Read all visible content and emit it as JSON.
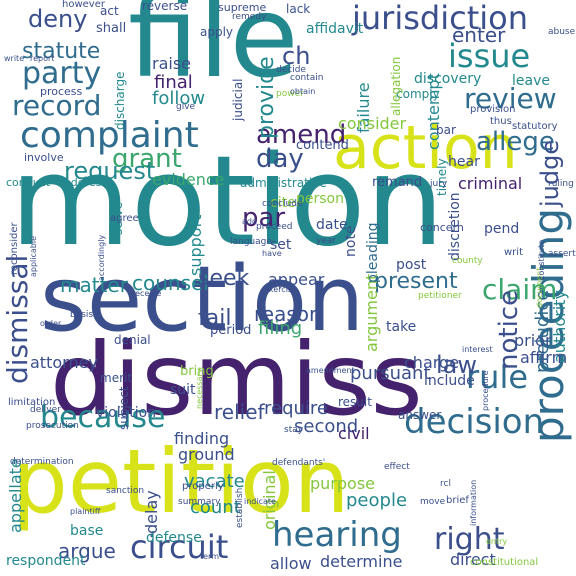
{
  "palette": {
    "purple": "#45226d",
    "indigo": "#3b4f8c",
    "blue": "#2f6c8e",
    "teal": "#23898e",
    "green": "#3aa66d",
    "lime": "#84c73d",
    "yellow": "#d8e219"
  },
  "words": [
    {
      "text": "motion",
      "color": "teal"
    },
    {
      "text": "file",
      "color": "teal"
    },
    {
      "text": "section",
      "color": "indigo"
    },
    {
      "text": "dismiss",
      "color": "purple"
    },
    {
      "text": "petition",
      "color": "yellow"
    },
    {
      "text": "action",
      "color": "yellow"
    },
    {
      "text": "complaint",
      "color": "blue"
    },
    {
      "text": "jurisdiction",
      "color": "indigo"
    },
    {
      "text": "proceeding",
      "color": "blue"
    },
    {
      "text": "hearing",
      "color": "blue"
    },
    {
      "text": "dismissal",
      "color": "indigo"
    },
    {
      "text": "decision",
      "color": "blue"
    },
    {
      "text": "because",
      "color": "teal"
    },
    {
      "text": "circuit",
      "color": "indigo"
    },
    {
      "text": "issue",
      "color": "teal"
    },
    {
      "text": "party",
      "color": "blue"
    },
    {
      "text": "review",
      "color": "blue"
    },
    {
      "text": "record",
      "color": "blue"
    },
    {
      "text": "deny",
      "color": "indigo"
    },
    {
      "text": "claim",
      "color": "green"
    },
    {
      "text": "rule",
      "color": "blue"
    },
    {
      "text": "amend",
      "color": "purple"
    },
    {
      "text": "grant",
      "color": "green"
    },
    {
      "text": "day",
      "color": "indigo"
    },
    {
      "text": "notice",
      "color": "indigo"
    },
    {
      "text": "right",
      "color": "indigo"
    },
    {
      "text": "allege",
      "color": "blue"
    },
    {
      "text": "statute",
      "color": "blue"
    },
    {
      "text": "par",
      "color": "purple"
    },
    {
      "text": "request",
      "color": "teal"
    },
    {
      "text": "judge",
      "color": "indigo"
    },
    {
      "text": "provide",
      "color": "teal"
    },
    {
      "text": "present",
      "color": "blue"
    },
    {
      "text": "matter",
      "color": "teal"
    },
    {
      "text": "counsel",
      "color": "teal"
    },
    {
      "text": "seek",
      "color": "indigo"
    },
    {
      "text": "appellate",
      "color": "teal"
    },
    {
      "text": "argue",
      "color": "indigo"
    },
    {
      "text": "law",
      "color": "indigo"
    },
    {
      "text": "relief",
      "color": "indigo"
    },
    {
      "text": "attorney",
      "color": "indigo"
    },
    {
      "text": "prejudice",
      "color": "blue"
    },
    {
      "text": "authority",
      "color": "teal"
    },
    {
      "text": "enter",
      "color": "indigo"
    },
    {
      "text": "contempt",
      "color": "teal"
    },
    {
      "text": "ch",
      "color": "indigo"
    },
    {
      "text": "final",
      "color": "purple"
    },
    {
      "text": "follow",
      "color": "teal"
    },
    {
      "text": "raise",
      "color": "indigo"
    },
    {
      "text": "failure",
      "color": "teal"
    },
    {
      "text": "consider",
      "color": "lime"
    },
    {
      "text": "evidence",
      "color": "green"
    },
    {
      "text": "fail",
      "color": "indigo"
    },
    {
      "text": "reason",
      "color": "indigo"
    },
    {
      "text": "filing",
      "color": "green"
    },
    {
      "text": "charge",
      "color": "indigo"
    },
    {
      "text": "pursuant",
      "color": "indigo"
    },
    {
      "text": "argument",
      "color": "lime"
    },
    {
      "text": "require",
      "color": "indigo"
    },
    {
      "text": "second",
      "color": "indigo"
    },
    {
      "text": "finding",
      "color": "indigo"
    },
    {
      "text": "ground",
      "color": "indigo"
    },
    {
      "text": "vacate",
      "color": "teal"
    },
    {
      "text": "count",
      "color": "teal"
    },
    {
      "text": "people",
      "color": "teal"
    },
    {
      "text": "original",
      "color": "lime"
    },
    {
      "text": "purpose",
      "color": "lime"
    },
    {
      "text": "allow",
      "color": "indigo"
    },
    {
      "text": "determine",
      "color": "indigo"
    },
    {
      "text": "direct",
      "color": "indigo"
    },
    {
      "text": "respondent",
      "color": "teal"
    },
    {
      "text": "base",
      "color": "teal"
    },
    {
      "text": "defense",
      "color": "teal"
    },
    {
      "text": "delay",
      "color": "indigo"
    },
    {
      "text": "suit",
      "color": "indigo"
    },
    {
      "text": "civil",
      "color": "purple"
    },
    {
      "text": "appear",
      "color": "indigo"
    },
    {
      "text": "discretion",
      "color": "indigo"
    },
    {
      "text": "support",
      "color": "teal"
    },
    {
      "text": "set",
      "color": "indigo"
    },
    {
      "text": "note",
      "color": "indigo"
    },
    {
      "text": "prior",
      "color": "indigo"
    },
    {
      "text": "affirm",
      "color": "indigo"
    },
    {
      "text": "take",
      "color": "indigo"
    },
    {
      "text": "include",
      "color": "indigo"
    },
    {
      "text": "criminal",
      "color": "purple"
    },
    {
      "text": "pend",
      "color": "indigo"
    },
    {
      "text": "post",
      "color": "indigo"
    },
    {
      "text": "pleading",
      "color": "blue"
    },
    {
      "text": "date",
      "color": "indigo"
    },
    {
      "text": "remand",
      "color": "indigo"
    },
    {
      "text": "hear",
      "color": "indigo"
    },
    {
      "text": "timely",
      "color": "teal"
    },
    {
      "text": "bar",
      "color": "indigo"
    },
    {
      "text": "contend",
      "color": "indigo"
    },
    {
      "text": "administrative",
      "color": "teal"
    },
    {
      "text": "person",
      "color": "lime"
    },
    {
      "text": "cite",
      "color": "lime"
    },
    {
      "text": "discovery",
      "color": "teal"
    },
    {
      "text": "leave",
      "color": "teal"
    },
    {
      "text": "comply",
      "color": "teal"
    },
    {
      "text": "allegation",
      "color": "lime"
    },
    {
      "text": "affidavit",
      "color": "teal"
    },
    {
      "text": "apply",
      "color": "indigo"
    },
    {
      "text": "act",
      "color": "indigo"
    },
    {
      "text": "shall",
      "color": "indigo"
    },
    {
      "text": "reverse",
      "color": "indigo"
    },
    {
      "text": "supreme",
      "color": "indigo"
    },
    {
      "text": "lack",
      "color": "indigo"
    },
    {
      "text": "involve",
      "color": "indigo"
    },
    {
      "text": "conduct",
      "color": "teal"
    },
    {
      "text": "address",
      "color": "teal"
    },
    {
      "text": "period",
      "color": "indigo"
    },
    {
      "text": "denial",
      "color": "indigo"
    },
    {
      "text": "bring",
      "color": "lime"
    },
    {
      "text": "merit",
      "color": "indigo"
    },
    {
      "text": "subject",
      "color": "indigo"
    },
    {
      "text": "violation",
      "color": "indigo"
    },
    {
      "text": "serve",
      "color": "teal"
    },
    {
      "text": "result",
      "color": "indigo"
    },
    {
      "text": "answer",
      "color": "indigo"
    },
    {
      "text": "process",
      "color": "indigo"
    },
    {
      "text": "discharge",
      "color": "teal"
    },
    {
      "text": "judicial",
      "color": "indigo"
    },
    {
      "text": "however",
      "color": "indigo"
    },
    {
      "text": "remedy",
      "color": "indigo"
    },
    {
      "text": "thus",
      "color": "indigo"
    },
    {
      "text": "abuse",
      "color": "indigo"
    },
    {
      "text": "ruling",
      "color": "indigo"
    },
    {
      "text": "jury",
      "color": "indigo"
    },
    {
      "text": "writ",
      "color": "indigo"
    },
    {
      "text": "year",
      "color": "indigo"
    },
    {
      "text": "concern",
      "color": "indigo"
    },
    {
      "text": "statutory",
      "color": "indigo"
    },
    {
      "text": "provision",
      "color": "indigo"
    },
    {
      "text": "power",
      "color": "lime"
    },
    {
      "text": "contain",
      "color": "indigo"
    },
    {
      "text": "decide",
      "color": "indigo"
    },
    {
      "text": "give",
      "color": "indigo"
    },
    {
      "text": "reconsider",
      "color": "indigo"
    },
    {
      "text": "agree",
      "color": "indigo"
    },
    {
      "text": "limitation",
      "color": "indigo"
    },
    {
      "text": "prosecution",
      "color": "indigo"
    },
    {
      "text": "deliver",
      "color": "indigo"
    },
    {
      "text": "determination",
      "color": "indigo"
    },
    {
      "text": "sanction",
      "color": "indigo"
    },
    {
      "text": "properly",
      "color": "indigo"
    },
    {
      "text": "summary",
      "color": "indigo"
    },
    {
      "text": "establish",
      "color": "indigo"
    },
    {
      "text": "defendants'",
      "color": "indigo"
    },
    {
      "text": "effect",
      "color": "indigo"
    },
    {
      "text": "move",
      "color": "indigo"
    },
    {
      "text": "rcl",
      "color": "indigo"
    },
    {
      "text": "brief",
      "color": "indigo"
    },
    {
      "text": "constitutional",
      "color": "lime"
    },
    {
      "text": "document",
      "color": "lime"
    },
    {
      "text": "accordingly",
      "color": "indigo"
    },
    {
      "text": "stay",
      "color": "indigo"
    },
    {
      "text": "amendment",
      "color": "indigo"
    },
    {
      "text": "necessary",
      "color": "lime"
    },
    {
      "text": "conclude",
      "color": "indigo"
    },
    {
      "text": "proceed",
      "color": "indigo"
    },
    {
      "text": "language",
      "color": "indigo"
    },
    {
      "text": "basis",
      "color": "indigo"
    },
    {
      "text": "receive",
      "color": "indigo"
    },
    {
      "text": "exercise",
      "color": "indigo"
    },
    {
      "text": "county",
      "color": "lime"
    },
    {
      "text": "petitioner",
      "color": "lime"
    },
    {
      "text": "interest",
      "color": "indigo"
    },
    {
      "text": "procedure",
      "color": "indigo"
    },
    {
      "text": "constitute",
      "color": "indigo"
    },
    {
      "text": "assert",
      "color": "indigo"
    },
    {
      "text": "term",
      "color": "indigo"
    },
    {
      "text": "indicate",
      "color": "indigo"
    },
    {
      "text": "write",
      "color": "indigo"
    },
    {
      "text": "report",
      "color": "indigo"
    },
    {
      "text": "plaintiff",
      "color": "indigo"
    },
    {
      "text": "entry",
      "color": "lime"
    },
    {
      "text": "information",
      "color": "indigo"
    },
    {
      "text": "add",
      "color": "indigo"
    },
    {
      "text": "have",
      "color": "indigo"
    },
    {
      "text": "obtain",
      "color": "indigo"
    },
    {
      "text": "applicable",
      "color": "indigo"
    },
    {
      "text": "order",
      "color": "indigo"
    }
  ]
}
